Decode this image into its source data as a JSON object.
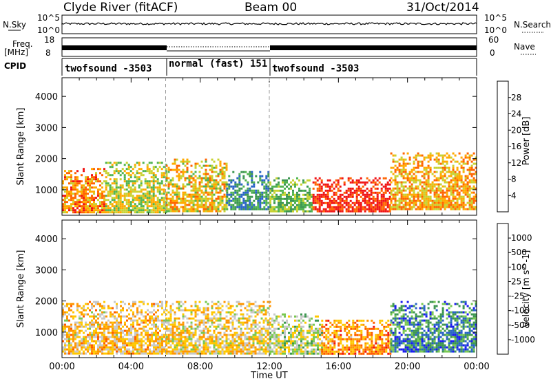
{
  "header": {
    "station": "Clyde River (fitACF)",
    "beam": "Beam 00",
    "date": "31/Oct/2014"
  },
  "top_panels": {
    "nsky_label": "N.Sky",
    "nsky_ticks": [
      "10^5",
      "10^0"
    ],
    "nsearch_label": "N.Search",
    "nsearch_ticks": [
      "10^5",
      "10^0"
    ],
    "freq_label_1": "Freq.",
    "freq_label_2": "[MHz]",
    "freq_ticks": [
      "18",
      "8"
    ],
    "nave_label": "Nave",
    "nave_ticks": [
      "60",
      "0"
    ],
    "cpid_label": "CPID",
    "cpid_segments": [
      {
        "label": "twofsound -3503",
        "start_h": 0,
        "end_h": 6
      },
      {
        "label": "normal (fast) 151",
        "start_h": 6,
        "end_h": 12
      },
      {
        "label": "twofsound -3503",
        "start_h": 12,
        "end_h": 24
      }
    ]
  },
  "chart_data": [
    {
      "type": "heatmap",
      "panel": "power",
      "xlabel": "",
      "ylabel": "Slant Range [km]",
      "xlim": [
        0,
        24
      ],
      "ylim": [
        180,
        4600
      ],
      "x_ticks": [
        "00:00",
        "04:00",
        "08:00",
        "12:00",
        "16:00",
        "20:00",
        "00:00"
      ],
      "y_ticks": [
        1000,
        2000,
        3000,
        4000
      ],
      "colorbar": {
        "label": "Power [dB]",
        "ticks": [
          "4",
          "8",
          "12",
          "16",
          "20",
          "24",
          "28"
        ],
        "range": [
          0,
          32
        ],
        "colors": [
          "#1a1af0",
          "#2864c8",
          "#3c9650",
          "#50b450",
          "#c8d232",
          "#ffaa00",
          "#ff6400",
          "#f01414"
        ]
      },
      "regions": [
        {
          "t": [
            0.0,
            2.5
          ],
          "r": [
            300,
            1700
          ],
          "value": 24
        },
        {
          "t": [
            2.5,
            6.0
          ],
          "r": [
            300,
            1900
          ],
          "value": 18
        },
        {
          "t": [
            6.0,
            9.5
          ],
          "r": [
            300,
            2000
          ],
          "value": 20
        },
        {
          "t": [
            9.5,
            12.0
          ],
          "r": [
            400,
            1600
          ],
          "value": 10
        },
        {
          "t": [
            12.0,
            14.5
          ],
          "r": [
            300,
            1400
          ],
          "value": 14
        },
        {
          "t": [
            14.5,
            19.0
          ],
          "r": [
            300,
            1400
          ],
          "value": 30
        },
        {
          "t": [
            19.0,
            24.0
          ],
          "r": [
            400,
            2200
          ],
          "value": 22
        }
      ]
    },
    {
      "type": "heatmap",
      "panel": "velocity",
      "xlabel": "Time UT",
      "ylabel": "Slant Range [km]",
      "xlim": [
        0,
        24
      ],
      "ylim": [
        180,
        4600
      ],
      "x_ticks": [
        "00:00",
        "04:00",
        "08:00",
        "12:00",
        "16:00",
        "20:00",
        "00:00"
      ],
      "y_ticks": [
        1000,
        2000,
        3000,
        4000
      ],
      "colorbar": {
        "label": "Velocity [m s^-1]",
        "ticks": [
          "1000",
          "500",
          "100",
          "25",
          "-25",
          "-100",
          "-500",
          "-1000"
        ],
        "range": [
          -1300,
          1300
        ],
        "colors": [
          "#f01414",
          "#ff5a00",
          "#ff9600",
          "#ffc800",
          "#c8c8c8",
          "#78c850",
          "#3c9650",
          "#2864c8",
          "#1a1af0"
        ]
      },
      "regions": [
        {
          "t": [
            0.0,
            6.0
          ],
          "r": [
            300,
            2000
          ],
          "value": -300
        },
        {
          "t": [
            6.0,
            12.0
          ],
          "r": [
            300,
            2000
          ],
          "value": -200
        },
        {
          "t": [
            12.0,
            15.0
          ],
          "r": [
            300,
            1600
          ],
          "value": 60
        },
        {
          "t": [
            15.0,
            19.0
          ],
          "r": [
            300,
            1400
          ],
          "value": -600
        },
        {
          "t": [
            19.0,
            24.0
          ],
          "r": [
            400,
            2000
          ],
          "value": 700
        }
      ]
    }
  ]
}
